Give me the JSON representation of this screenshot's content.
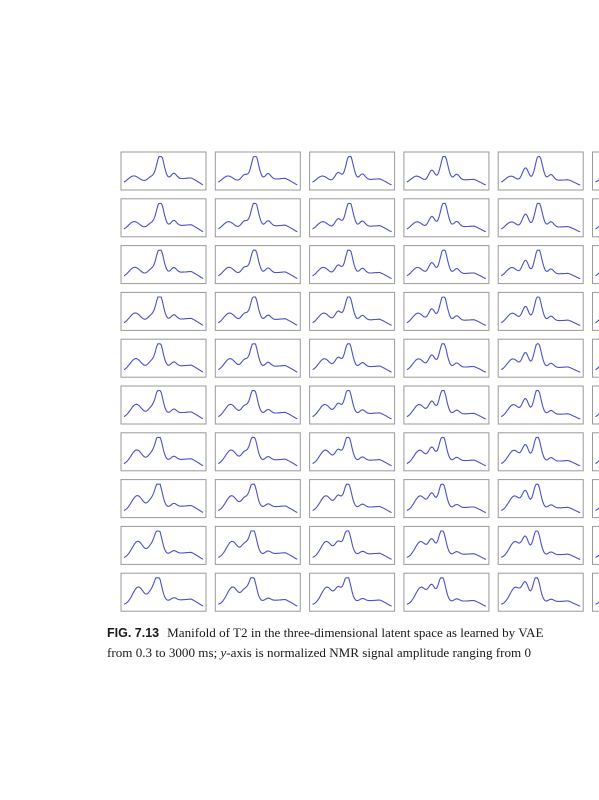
{
  "figure": {
    "grid_rows": 10,
    "grid_cols_visible": 6,
    "curve_color": "#4a52c8",
    "frame_color": "#9a9a9a"
  },
  "caption": {
    "label": "FIG. 7.13",
    "line1": "Manifold of T2 in the three-dimensional latent space as learned by VAE",
    "line2_a": "from 0.3 to 3000 ms; ",
    "line2_y": "y",
    "line2_b": "-axis is normalized NMR signal amplitude ranging from 0"
  }
}
